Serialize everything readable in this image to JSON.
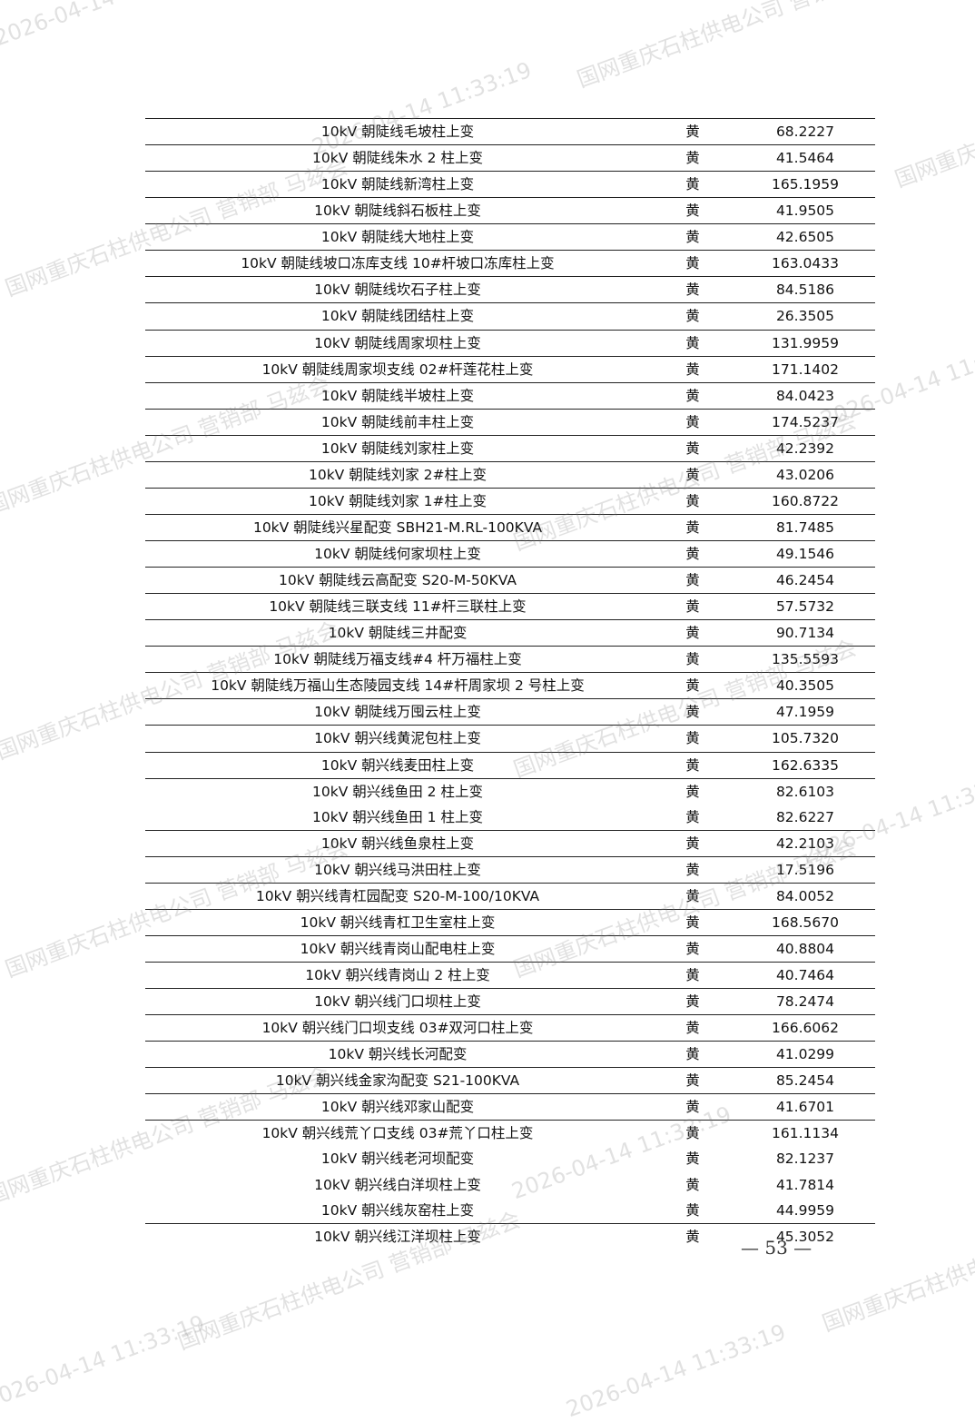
{
  "table": {
    "rows": [
      [
        "10kV 朝陡线毛坡柱上变",
        "黄",
        "68.2227"
      ],
      [
        "10kV 朝陡线朱水 2 柱上变",
        "黄",
        "41.5464"
      ],
      [
        "10kV 朝陡线新湾柱上变",
        "黄",
        "165.1959"
      ],
      [
        "10kV 朝陡线斜石板柱上变",
        "黄",
        "41.9505"
      ],
      [
        "10kV 朝陡线大地柱上变",
        "黄",
        "42.6505"
      ],
      [
        "10kV 朝陡线坡口冻库支线 10#杆坡口冻库柱上变",
        "黄",
        "163.0433"
      ],
      [
        "10kV 朝陡线坎石子柱上变",
        "黄",
        "84.5186"
      ],
      [
        "10kV 朝陡线团结柱上变",
        "黄",
        "26.3505"
      ],
      [
        "10kV 朝陡线周家坝柱上变",
        "黄",
        "131.9959"
      ],
      [
        "10kV 朝陡线周家坝支线 02#杆莲花柱上变",
        "黄",
        "171.1402"
      ],
      [
        "10kV 朝陡线半坡柱上变",
        "黄",
        "84.0423"
      ],
      [
        "10kV 朝陡线前丰柱上变",
        "黄",
        "174.5237"
      ],
      [
        "10kV 朝陡线刘家柱上变",
        "黄",
        "42.2392"
      ],
      [
        "10kV 朝陡线刘家 2#柱上变",
        "黄",
        "43.0206"
      ],
      [
        "10kV 朝陡线刘家 1#柱上变",
        "黄",
        "160.8722"
      ],
      [
        "10kV 朝陡线兴星配变 SBH21-M.RL-100KVA",
        "黄",
        "81.7485"
      ],
      [
        "10kV 朝陡线何家坝柱上变",
        "黄",
        "49.1546"
      ],
      [
        "10kV 朝陡线云高配变 S20-M-50KVA",
        "黄",
        "46.2454"
      ],
      [
        "10kV 朝陡线三联支线 11#杆三联柱上变",
        "黄",
        "57.5732"
      ],
      [
        "10kV 朝陡线三井配变",
        "黄",
        "90.7134"
      ],
      [
        "10kV 朝陡线万福支线#4 杆万福柱上变",
        "黄",
        "135.5593"
      ],
      [
        "10kV 朝陡线万福山生态陵园支线 14#杆周家坝 2 号柱上变",
        "黄",
        "40.3505"
      ],
      [
        "10kV 朝陡线万囤云柱上变",
        "黄",
        "47.1959"
      ],
      [
        "10kV 朝兴线黄泥包柱上变",
        "黄",
        "105.7320"
      ],
      [
        "10kV 朝兴线麦田柱上变",
        "黄",
        "162.6335"
      ],
      [
        "10kV 朝兴线鱼田 2 柱上变",
        "黄",
        "82.6103"
      ],
      [
        "10kV 朝兴线鱼田 1 柱上变",
        "黄",
        "82.6227"
      ],
      [
        "10kV 朝兴线鱼泉柱上变",
        "黄",
        "42.2103"
      ],
      [
        "10kV 朝兴线马洪田柱上变",
        "黄",
        "17.5196"
      ],
      [
        "10kV 朝兴线青杠园配变 S20-M-100/10KVA",
        "黄",
        "84.0052"
      ],
      [
        "10kV 朝兴线青杠卫生室柱上变",
        "黄",
        "168.5670"
      ],
      [
        "10kV 朝兴线青岗山配电柱上变",
        "黄",
        "40.8804"
      ],
      [
        "10kV 朝兴线青岗山 2 柱上变",
        "黄",
        "40.7464"
      ],
      [
        "10kV 朝兴线门口坝柱上变",
        "黄",
        "78.2474"
      ],
      [
        "10kV 朝兴线门口坝支线 03#双河口柱上变",
        "黄",
        "166.6062"
      ],
      [
        "10kV 朝兴线长河配变",
        "黄",
        "41.0299"
      ],
      [
        "10kV 朝兴线金家沟配变 S21-100KVA",
        "黄",
        "85.2454"
      ],
      [
        "10kV 朝兴线邓家山配变",
        "黄",
        "41.6701"
      ],
      [
        "10kV 朝兴线荒丫口支线 03#荒丫口柱上变",
        "黄",
        "161.1134"
      ],
      [
        "10kV 朝兴线老河坝配变",
        "黄",
        "82.1237"
      ],
      [
        "10kV 朝兴线白洋坝柱上变",
        "黄",
        "41.7814"
      ],
      [
        "10kV 朝兴线灰窑柱上变",
        "黄",
        "44.9959"
      ],
      [
        "10kV 朝兴线江洋坝柱上变",
        "黄",
        "45.3052"
      ]
    ]
  },
  "page_number": "— 53 —",
  "watermark": {
    "org": "国网重庆石柱供电公司 营销部 马兹会",
    "time": "2026-04-14 11:33:19"
  }
}
